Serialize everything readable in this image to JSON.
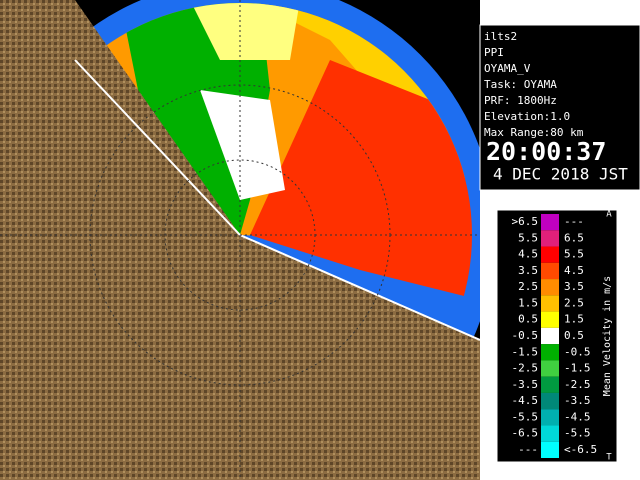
{
  "info": {
    "lines": [
      "ilts2",
      "PPI",
      "OYAMA_V",
      "Task: OYAMA",
      "PRF: 1800Hz",
      "Elevation:1.0",
      "Max Range:80 km"
    ],
    "time": "20:00:37",
    "date": "4 DEC 2018 JST"
  },
  "legend": {
    "title": "Mean Velocity in m/s",
    "top_mark": "A",
    "bottom_mark": "T",
    "rows": [
      {
        "left": ">6.5",
        "right": "---",
        "color": "#c000c0"
      },
      {
        "left": "5.5",
        "right": "6.5",
        "color": "#e0207a"
      },
      {
        "left": "4.5",
        "right": "5.5",
        "color": "#ff0000"
      },
      {
        "left": "3.5",
        "right": "4.5",
        "color": "#ff4a00"
      },
      {
        "left": "2.5",
        "right": "3.5",
        "color": "#ff8c00"
      },
      {
        "left": "1.5",
        "right": "2.5",
        "color": "#ffc000"
      },
      {
        "left": "0.5",
        "right": "1.5",
        "color": "#ffff00"
      },
      {
        "left": "-0.5",
        "right": "0.5",
        "color": "#ffffff"
      },
      {
        "left": "-1.5",
        "right": "-0.5",
        "color": "#00b000"
      },
      {
        "left": "-2.5",
        "right": "-1.5",
        "color": "#40d040"
      },
      {
        "left": "-3.5",
        "right": "-2.5",
        "color": "#009a40"
      },
      {
        "left": "-4.5",
        "right": "-3.5",
        "color": "#008878"
      },
      {
        "left": "-5.5",
        "right": "-4.5",
        "color": "#00b0b0"
      },
      {
        "left": "-6.5",
        "right": "-5.5",
        "color": "#00d8d8"
      },
      {
        "left": "---",
        "right": "<-6.5",
        "color": "#00ffff"
      }
    ]
  }
}
